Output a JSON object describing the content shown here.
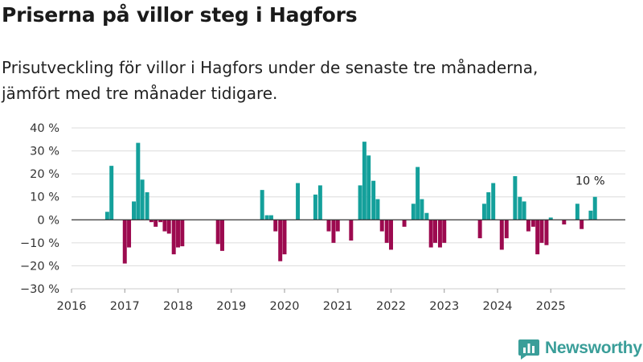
{
  "title": "Priserna på villor steg i Hagfors",
  "subtitle_lines": [
    "Prisutveckling för villor i Hagfors under de senaste tre månaderna,",
    "jämfört med tre månader tidigare."
  ],
  "brand": "Newsworthy",
  "colors": {
    "positive": "#14a09b",
    "negative": "#9c0a4f",
    "grid": "#dcdcdc",
    "zero_line": "#333333",
    "brand": "#3a9e99"
  },
  "chart_data": {
    "type": "bar",
    "title": "Priserna på villor steg i Hagfors",
    "xlabel": "",
    "ylabel": "",
    "ylim": [
      -30,
      40
    ],
    "yticks": [
      40,
      30,
      20,
      10,
      0,
      -10,
      -20,
      -30
    ],
    "ytick_labels": [
      "40 %",
      "30 %",
      "20 %",
      "10 %",
      "0 %",
      "−10 %",
      "−20 %",
      "−30 %"
    ],
    "xlim": [
      2016,
      2026.4
    ],
    "xticks": [
      2016,
      2017,
      2018,
      2019,
      2020,
      2021,
      2022,
      2023,
      2024,
      2025
    ],
    "xtick_labels": [
      "2016",
      "2017",
      "2018",
      "2019",
      "2020",
      "2021",
      "2022",
      "2023",
      "2024",
      "2025"
    ],
    "bar_width_years": 0.075,
    "annotation": {
      "text": "10 %",
      "x": 2025.83,
      "value": 10
    },
    "points": [
      {
        "x": 2016.67,
        "value": 3.5
      },
      {
        "x": 2016.75,
        "value": 23.5
      },
      {
        "x": 2017.0,
        "value": -19
      },
      {
        "x": 2017.08,
        "value": -12
      },
      {
        "x": 2017.17,
        "value": 8
      },
      {
        "x": 2017.25,
        "value": 33.5
      },
      {
        "x": 2017.33,
        "value": 17.5
      },
      {
        "x": 2017.42,
        "value": 12
      },
      {
        "x": 2017.5,
        "value": -1
      },
      {
        "x": 2017.58,
        "value": -3
      },
      {
        "x": 2017.67,
        "value": -1
      },
      {
        "x": 2017.75,
        "value": -5
      },
      {
        "x": 2017.83,
        "value": -6
      },
      {
        "x": 2017.92,
        "value": -15
      },
      {
        "x": 2018.0,
        "value": -12
      },
      {
        "x": 2018.08,
        "value": -11.5
      },
      {
        "x": 2018.75,
        "value": -10.5
      },
      {
        "x": 2018.83,
        "value": -13.5
      },
      {
        "x": 2019.58,
        "value": 13
      },
      {
        "x": 2019.67,
        "value": 2
      },
      {
        "x": 2019.75,
        "value": 2
      },
      {
        "x": 2019.83,
        "value": -5
      },
      {
        "x": 2019.92,
        "value": -18
      },
      {
        "x": 2020.0,
        "value": -15
      },
      {
        "x": 2020.25,
        "value": 16
      },
      {
        "x": 2020.58,
        "value": 11
      },
      {
        "x": 2020.67,
        "value": 15
      },
      {
        "x": 2020.83,
        "value": -5
      },
      {
        "x": 2020.92,
        "value": -10
      },
      {
        "x": 2021.0,
        "value": -5
      },
      {
        "x": 2021.25,
        "value": -9
      },
      {
        "x": 2021.42,
        "value": 15
      },
      {
        "x": 2021.5,
        "value": 34
      },
      {
        "x": 2021.58,
        "value": 28
      },
      {
        "x": 2021.67,
        "value": 17
      },
      {
        "x": 2021.75,
        "value": 9
      },
      {
        "x": 2021.83,
        "value": -5
      },
      {
        "x": 2021.92,
        "value": -10
      },
      {
        "x": 2022.0,
        "value": -13
      },
      {
        "x": 2022.25,
        "value": -3
      },
      {
        "x": 2022.42,
        "value": 7
      },
      {
        "x": 2022.5,
        "value": 23
      },
      {
        "x": 2022.58,
        "value": 9
      },
      {
        "x": 2022.67,
        "value": 3
      },
      {
        "x": 2022.75,
        "value": -12
      },
      {
        "x": 2022.83,
        "value": -10
      },
      {
        "x": 2022.92,
        "value": -12
      },
      {
        "x": 2023.0,
        "value": -10
      },
      {
        "x": 2023.67,
        "value": -8
      },
      {
        "x": 2023.75,
        "value": 7
      },
      {
        "x": 2023.83,
        "value": 12
      },
      {
        "x": 2023.92,
        "value": 16
      },
      {
        "x": 2024.08,
        "value": -13
      },
      {
        "x": 2024.17,
        "value": -8
      },
      {
        "x": 2024.33,
        "value": 19
      },
      {
        "x": 2024.42,
        "value": 10
      },
      {
        "x": 2024.5,
        "value": 8
      },
      {
        "x": 2024.58,
        "value": -5
      },
      {
        "x": 2024.67,
        "value": -3
      },
      {
        "x": 2024.75,
        "value": -15
      },
      {
        "x": 2024.83,
        "value": -10
      },
      {
        "x": 2024.92,
        "value": -11
      },
      {
        "x": 2025.0,
        "value": 1
      },
      {
        "x": 2025.25,
        "value": -2
      },
      {
        "x": 2025.5,
        "value": 7
      },
      {
        "x": 2025.58,
        "value": -4
      },
      {
        "x": 2025.75,
        "value": 4
      },
      {
        "x": 2025.83,
        "value": 10
      }
    ]
  }
}
